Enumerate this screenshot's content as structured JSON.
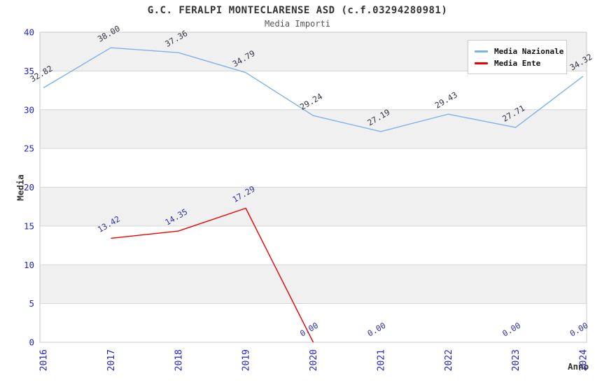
{
  "chart_data": {
    "type": "line",
    "title": "G.C. FERALPI MONTECLARENSE ASD (c.f.03294280981)",
    "subtitle": "Media Importi",
    "xlabel": "Anno",
    "ylabel": "Media",
    "ylim": [
      0,
      40
    ],
    "ytick_step": 5,
    "yticks": [
      "0",
      "5",
      "10",
      "15",
      "20",
      "25",
      "30",
      "35",
      "40"
    ],
    "x_ticks": [
      "2016",
      "2017",
      "2018",
      "2019",
      "2020",
      "2021",
      "2022",
      "2023",
      "2024"
    ],
    "grid": "horizontal",
    "legend_position": "top-right",
    "colors": {
      "band_fill": "#f0f0f1",
      "gridline": "#d6d6d6",
      "spine": "#c8c8c8",
      "axis_tick_text": "#2222cc",
      "title_text": "#333333",
      "data_label_nazionale": "#333344",
      "data_label_ente": "#333399"
    },
    "series": [
      {
        "name": "Media Nazionale",
        "color": "#7db2e8",
        "label_color": "#333344",
        "points": [
          {
            "x": "2016",
            "y": 32.82,
            "label": "32.82"
          },
          {
            "x": "2017",
            "y": 38.0,
            "label": "38.00"
          },
          {
            "x": "2018",
            "y": 37.36,
            "label": "37.36"
          },
          {
            "x": "2019",
            "y": 34.79,
            "label": "34.79"
          },
          {
            "x": "2020",
            "y": 29.24,
            "label": "29.24"
          },
          {
            "x": "2021",
            "y": 27.19,
            "label": "27.19"
          },
          {
            "x": "2022",
            "y": 29.43,
            "label": "29.43"
          },
          {
            "x": "2023",
            "y": 27.71,
            "label": "27.71"
          },
          {
            "x": "2024",
            "y": 34.32,
            "label": "34.32"
          }
        ]
      },
      {
        "name": "Media Ente",
        "color": "#ee0000",
        "label_color": "#333399",
        "line_through": [
          "2017",
          "2018",
          "2019",
          "2020"
        ],
        "points": [
          {
            "x": "2017",
            "y": 13.42,
            "label": "13.42"
          },
          {
            "x": "2018",
            "y": 14.35,
            "label": "14.35"
          },
          {
            "x": "2019",
            "y": 17.29,
            "label": "17.29"
          },
          {
            "x": "2020",
            "y": 0.0,
            "label": "0.00"
          },
          {
            "x": "2021",
            "y": 0.0,
            "label": "0.00"
          },
          {
            "x": "2023",
            "y": 0.0,
            "label": "0.00"
          },
          {
            "x": "2024",
            "y": 0.0,
            "label": "0.00"
          }
        ]
      }
    ]
  }
}
